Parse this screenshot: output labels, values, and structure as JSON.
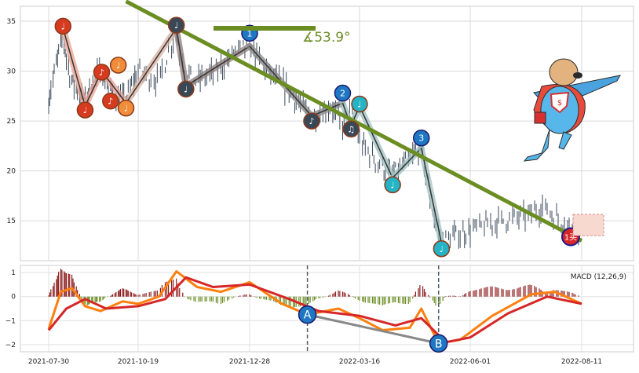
{
  "chart_data": [
    {
      "type": "candlestick",
      "panel": "price",
      "ylim": [
        11,
        36.5
      ],
      "y_ticks": [
        "15",
        "20",
        "25",
        "30",
        "35"
      ],
      "x_tick_labels": [
        "2021-07-30",
        "2021-10-19",
        "2021-12-28",
        "2022-03-16",
        "2022-06-01",
        "2022-08-11"
      ],
      "grid": true,
      "price_path": [
        {
          "date": "2021-07-30",
          "price": 27
        },
        {
          "date": "2021-08-12",
          "price": 33.5
        },
        {
          "date": "2021-08-20",
          "price": 29
        },
        {
          "date": "2021-09-01",
          "price": 27
        },
        {
          "date": "2021-09-08",
          "price": 29
        },
        {
          "date": "2021-09-16",
          "price": 30
        },
        {
          "date": "2021-09-24",
          "price": 28
        },
        {
          "date": "2021-10-08",
          "price": 27
        },
        {
          "date": "2021-10-19",
          "price": 30
        },
        {
          "date": "2021-11-01",
          "price": 29
        },
        {
          "date": "2021-11-12",
          "price": 34
        },
        {
          "date": "2021-11-18",
          "price": 30
        },
        {
          "date": "2021-11-25",
          "price": 29
        },
        {
          "date": "2021-12-08",
          "price": 30
        },
        {
          "date": "2021-12-20",
          "price": 32
        },
        {
          "date": "2021-12-28",
          "price": 32.5
        },
        {
          "date": "2022-01-10",
          "price": 30
        },
        {
          "date": "2022-01-25",
          "price": 28
        },
        {
          "date": "2022-02-10",
          "price": 25.5
        },
        {
          "date": "2022-02-24",
          "price": 26.5
        },
        {
          "date": "2022-03-04",
          "price": 24.5
        },
        {
          "date": "2022-03-10",
          "price": 26
        },
        {
          "date": "2022-03-16",
          "price": 23
        },
        {
          "date": "2022-03-28",
          "price": 21
        },
        {
          "date": "2022-04-08",
          "price": 19.5
        },
        {
          "date": "2022-04-20",
          "price": 21
        },
        {
          "date": "2022-04-28",
          "price": 22.5
        },
        {
          "date": "2022-05-06",
          "price": 16
        },
        {
          "date": "2022-05-12",
          "price": 13
        },
        {
          "date": "2022-06-01",
          "price": 14
        },
        {
          "date": "2022-06-20",
          "price": 15
        },
        {
          "date": "2022-07-08",
          "price": 15.5
        },
        {
          "date": "2022-07-18",
          "price": 16.5
        },
        {
          "date": "2022-07-28",
          "price": 15
        },
        {
          "date": "2022-08-11",
          "price": 14
        }
      ],
      "trend_line": {
        "from": {
          "date": "2021-10-08",
          "price": 37
        },
        "to": {
          "date": "2022-08-11",
          "price": 13
        },
        "color": "#6b8e23"
      },
      "angle_label": "∡53.9°",
      "wave_labels": [
        "1",
        "2",
        "3"
      ],
      "buy_signal_label": "1买",
      "colors": {
        "candles": "#3b4a5c",
        "trend": "#6b8e23"
      }
    },
    {
      "type": "macd",
      "panel": "indicator",
      "legend": "MACD (12,26,9)",
      "ylim": [
        -2.3,
        1.3
      ],
      "y_ticks": [
        "1",
        "0",
        "−1",
        "−2"
      ],
      "series": [
        {
          "name": "DIF",
          "color": "#ff7f0e",
          "values": [
            {
              "date": "2021-07-30",
              "v": -1.35
            },
            {
              "date": "2021-08-10",
              "v": 0.2
            },
            {
              "date": "2021-08-20",
              "v": 0.35
            },
            {
              "date": "2021-09-01",
              "v": -0.4
            },
            {
              "date": "2021-09-15",
              "v": -0.6
            },
            {
              "date": "2021-10-05",
              "v": -0.2
            },
            {
              "date": "2021-10-19",
              "v": -0.3
            },
            {
              "date": "2021-11-01",
              "v": 0.0
            },
            {
              "date": "2021-11-12",
              "v": 1.05
            },
            {
              "date": "2021-11-25",
              "v": 0.4
            },
            {
              "date": "2021-12-10",
              "v": 0.2
            },
            {
              "date": "2021-12-28",
              "v": 0.6
            },
            {
              "date": "2022-01-20",
              "v": -0.3
            },
            {
              "date": "2022-02-07",
              "v": -0.75
            },
            {
              "date": "2022-03-01",
              "v": -0.5
            },
            {
              "date": "2022-03-16",
              "v": -0.9
            },
            {
              "date": "2022-04-01",
              "v": -1.4
            },
            {
              "date": "2022-04-20",
              "v": -1.3
            },
            {
              "date": "2022-04-28",
              "v": -0.5
            },
            {
              "date": "2022-05-10",
              "v": -1.95
            },
            {
              "date": "2022-05-25",
              "v": -1.8
            },
            {
              "date": "2022-06-15",
              "v": -0.8
            },
            {
              "date": "2022-07-10",
              "v": 0.1
            },
            {
              "date": "2022-07-25",
              "v": 0.2
            },
            {
              "date": "2022-08-11",
              "v": -0.3
            }
          ]
        },
        {
          "name": "DEA",
          "color": "#d62728",
          "values": [
            {
              "date": "2021-07-30",
              "v": -1.4
            },
            {
              "date": "2021-08-15",
              "v": -0.5
            },
            {
              "date": "2021-09-01",
              "v": -0.1
            },
            {
              "date": "2021-09-20",
              "v": -0.5
            },
            {
              "date": "2021-10-19",
              "v": -0.4
            },
            {
              "date": "2021-11-05",
              "v": -0.1
            },
            {
              "date": "2021-11-18",
              "v": 0.8
            },
            {
              "date": "2021-12-05",
              "v": 0.4
            },
            {
              "date": "2021-12-28",
              "v": 0.5
            },
            {
              "date": "2022-01-25",
              "v": -0.1
            },
            {
              "date": "2022-02-15",
              "v": -0.6
            },
            {
              "date": "2022-03-16",
              "v": -0.8
            },
            {
              "date": "2022-04-10",
              "v": -1.2
            },
            {
              "date": "2022-04-28",
              "v": -0.9
            },
            {
              "date": "2022-05-15",
              "v": -1.9
            },
            {
              "date": "2022-06-01",
              "v": -1.7
            },
            {
              "date": "2022-06-25",
              "v": -0.7
            },
            {
              "date": "2022-07-20",
              "v": 0.0
            },
            {
              "date": "2022-08-11",
              "v": -0.3
            }
          ]
        }
      ],
      "divergence_points": [
        {
          "label": "A",
          "date": "2022-02-07",
          "v": -0.75
        },
        {
          "label": "B",
          "date": "2022-05-10",
          "v": -1.95
        }
      ]
    }
  ],
  "mascot": {
    "name": "superhero-dog",
    "badge": "$"
  }
}
